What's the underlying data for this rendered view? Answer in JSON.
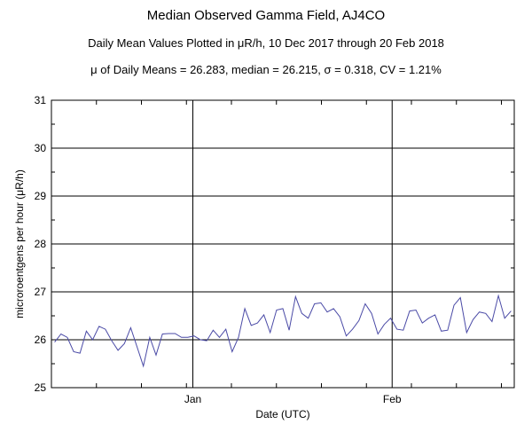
{
  "chart_data": {
    "type": "line",
    "title": "Median Observed Gamma Field, AJ4CO",
    "subtitle": "Daily Mean Values Plotted in μR/h, 10 Dec 2017 through 20 Feb 2018",
    "stats": "μ of Daily Means = 26.283,   median = 26.215,   σ = 0.318,   CV = 1.21%",
    "xlabel": "Date (UTC)",
    "ylabel": "microroentgens per hour (μR/h)",
    "ylim": [
      25,
      31
    ],
    "yticks": [
      "25",
      "26",
      "27",
      "28",
      "29",
      "30",
      "31"
    ],
    "x_start_date": "2017-12-10",
    "x_end_date": "2018-02-20",
    "xtick_labels": [
      {
        "date": "2018-01-01",
        "label": "Jan"
      },
      {
        "date": "2018-02-01",
        "label": "Feb"
      }
    ],
    "grid": true,
    "line_color": "#4a4aa6",
    "series": [
      {
        "values": [
          25.95,
          26.12,
          26.05,
          25.75,
          25.72,
          26.18,
          26.0,
          26.28,
          26.22,
          25.98,
          25.78,
          25.92,
          26.25,
          25.85,
          25.45,
          26.05,
          25.68,
          26.12,
          26.13,
          26.13,
          26.05,
          26.05,
          26.08,
          26.0,
          25.98,
          26.2,
          26.05,
          26.22,
          25.75,
          26.05,
          26.65,
          26.3,
          26.35,
          26.52,
          26.15,
          26.62,
          26.65,
          26.2,
          26.9,
          26.55,
          26.45,
          26.75,
          26.77,
          26.58,
          26.65,
          26.48,
          26.08,
          26.22,
          26.4,
          26.75,
          26.55,
          26.12,
          26.32,
          26.45,
          26.22,
          26.2,
          26.6,
          26.62,
          26.35,
          26.45,
          26.52,
          26.18,
          26.2,
          26.72,
          26.88,
          26.15,
          26.42,
          26.58,
          26.55,
          26.38,
          26.92,
          26.45,
          26.6
        ]
      }
    ]
  }
}
